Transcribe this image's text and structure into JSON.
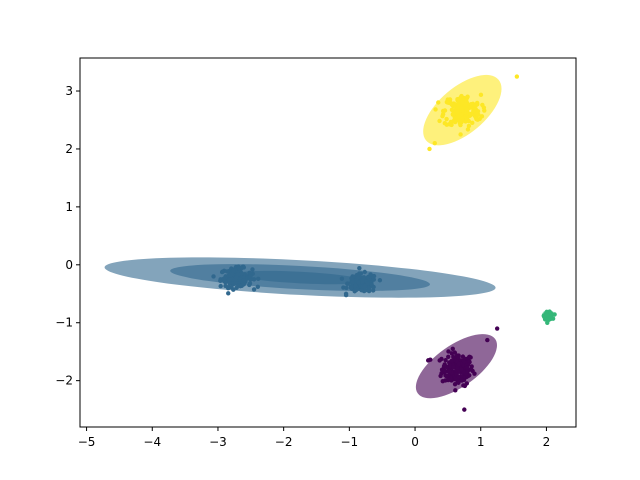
{
  "chart_data": {
    "type": "scatter",
    "title": "",
    "xlabel": "",
    "ylabel": "",
    "xlim": [
      -5.1,
      2.45
    ],
    "ylim": [
      -2.8,
      3.57
    ],
    "xticks": [
      -5,
      -4,
      -3,
      -2,
      -1,
      0,
      1,
      2
    ],
    "yticks": [
      -2,
      -1,
      0,
      1,
      2,
      3
    ],
    "xtick_labels": [
      "−5",
      "−4",
      "−3",
      "−2",
      "−1",
      "0",
      "1",
      "2"
    ],
    "ytick_labels": [
      "−2",
      "−1",
      "0",
      "1",
      "2",
      "3"
    ],
    "grid": false,
    "legend": "none",
    "clusters": [
      {
        "color": "#440154",
        "center": [
          0.65,
          -1.8
        ],
        "spread": [
          0.12,
          0.14
        ],
        "count": 180,
        "outliers": [
          [
            1.25,
            -1.1
          ],
          [
            0.75,
            -2.5
          ],
          [
            0.2,
            -1.65
          ],
          [
            1.1,
            -1.3
          ]
        ],
        "ellipses": [
          {
            "cx": 0.63,
            "cy": -1.75,
            "rx": 0.72,
            "ry": 0.36,
            "angle_deg": 35,
            "opacity": 0.6
          }
        ]
      },
      {
        "color": "#31688e",
        "center": [
          -2.72,
          -0.22
        ],
        "spread": [
          0.12,
          0.08
        ],
        "count": 150,
        "outliers": [],
        "ellipses": []
      },
      {
        "color": "#31688e",
        "center": [
          -0.8,
          -0.32
        ],
        "spread": [
          0.11,
          0.08
        ],
        "count": 150,
        "outliers": [
          [
            -1.05,
            -0.5
          ]
        ],
        "ellipses": [
          {
            "cx": -1.75,
            "cy": -0.22,
            "rx": 2.98,
            "ry": 0.3,
            "angle_deg": -3,
            "opacity": 0.6
          },
          {
            "cx": -1.75,
            "cy": -0.22,
            "rx": 1.98,
            "ry": 0.2,
            "angle_deg": -3,
            "opacity": 0.6
          },
          {
            "cx": -1.75,
            "cy": -0.22,
            "rx": 0.99,
            "ry": 0.1,
            "angle_deg": -3,
            "opacity": 0.6
          }
        ]
      },
      {
        "color": "#35b779",
        "center": [
          2.03,
          -0.88
        ],
        "spread": [
          0.03,
          0.03
        ],
        "count": 60,
        "outliers": [],
        "ellipses": [
          {
            "cx": 2.03,
            "cy": -0.88,
            "rx": 0.1,
            "ry": 0.1,
            "angle_deg": 0,
            "opacity": 0.6
          }
        ]
      },
      {
        "color": "#fde725",
        "center": [
          0.72,
          2.65
        ],
        "spread": [
          0.14,
          0.14
        ],
        "count": 180,
        "outliers": [
          [
            1.55,
            3.25
          ],
          [
            0.22,
            2.0
          ],
          [
            0.3,
            2.1
          ]
        ],
        "ellipses": [
          {
            "cx": 0.72,
            "cy": 2.67,
            "rx": 0.72,
            "ry": 0.4,
            "angle_deg": 40,
            "opacity": 0.6
          }
        ]
      }
    ]
  }
}
